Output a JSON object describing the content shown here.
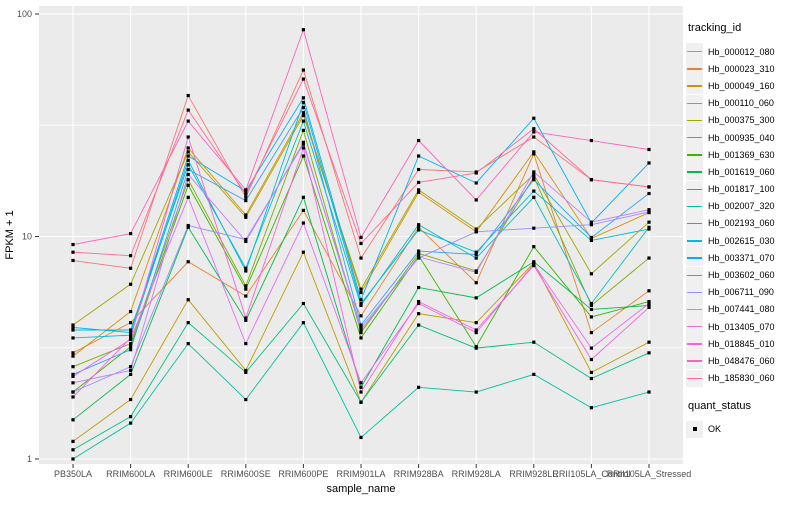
{
  "chart_data": {
    "type": "line",
    "title": "",
    "xlabel": "sample_name",
    "ylabel": "FPKM + 1",
    "y_scale": "log10",
    "ylim": [
      1,
      100
    ],
    "y_major_ticks": [
      1,
      10,
      100
    ],
    "y_minor_gridlines": [
      3.162,
      31.62
    ],
    "legend_position": "right",
    "grid": true,
    "point_shape": "black-square",
    "categories": [
      "PB350LA",
      "RRIM600LA",
      "RRIM600LE",
      "RRIM600SE",
      "RRIM600PE",
      "RRIM901LA",
      "RRIM928BA",
      "RRIM928LA",
      "RRIM928LE",
      "RRII105LA_Control",
      "RRII105LA_Stressed"
    ],
    "series": [
      {
        "name": "Hb_000012_080",
        "color": "#F8766D",
        "values": [
          7.8,
          7.2,
          43,
          15.0,
          56,
          8.0,
          20,
          19.5,
          28,
          18.0,
          16.7
        ]
      },
      {
        "name": "Hb_000023_310",
        "color": "#EA8331",
        "values": [
          3.0,
          4.1,
          7.7,
          5.4,
          13.1,
          4.4,
          11.0,
          6.2,
          23.5,
          3.7,
          5.7
        ]
      },
      {
        "name": "Hb_000049_160",
        "color": "#D89000",
        "values": [
          2.9,
          4.6,
          25,
          12.5,
          36,
          5.6,
          15.8,
          10.5,
          24,
          9.8,
          12.8
        ]
      },
      {
        "name": "Hb_000110_060",
        "color": "#C09B00",
        "values": [
          1.2,
          1.85,
          5.2,
          2.5,
          8.5,
          1.8,
          4.5,
          4.1,
          7.6,
          2.45,
          3.35
        ]
      },
      {
        "name": "Hb_000375_300",
        "color": "#A3A500",
        "values": [
          4.0,
          6.1,
          24,
          12.2,
          35,
          5.8,
          16.2,
          10.8,
          19,
          6.8,
          11.6
        ]
      },
      {
        "name": "Hb_000935_040",
        "color": "#7CAE00",
        "values": [
          2.6,
          3.3,
          18,
          6.0,
          30,
          3.7,
          8.4,
          7.0,
          18.5,
          4.9,
          8.0
        ]
      },
      {
        "name": "Hb_001369_630",
        "color": "#39B600",
        "values": [
          2.0,
          3.2,
          17,
          5.8,
          23,
          3.5,
          8.2,
          3.2,
          9.0,
          4.35,
          5.1
        ]
      },
      {
        "name": "Hb_001619_060",
        "color": "#00BB4E",
        "values": [
          1.5,
          2.4,
          11,
          4.2,
          15,
          2.1,
          5.9,
          5.3,
          7.7,
          4.7,
          4.9
        ]
      },
      {
        "name": "Hb_001817_100",
        "color": "#00BF7D",
        "values": [
          1.1,
          1.55,
          4.1,
          2.45,
          5.0,
          1.8,
          4.0,
          3.15,
          3.35,
          2.3,
          3.0
        ]
      },
      {
        "name": "Hb_002007_320",
        "color": "#00C1A3",
        "values": [
          1.0,
          1.45,
          3.3,
          1.85,
          4.1,
          1.25,
          2.1,
          2.0,
          2.4,
          1.7,
          2.0
        ]
      },
      {
        "name": "Hb_002193_060",
        "color": "#00BFC4",
        "values": [
          3.8,
          3.8,
          21,
          7.2,
          33,
          4.9,
          11.3,
          8.0,
          15.0,
          5.0,
          11.0
        ]
      },
      {
        "name": "Hb_002615_030",
        "color": "#00BAE0",
        "values": [
          3.5,
          3.6,
          22,
          7.0,
          40,
          5.0,
          10.7,
          8.5,
          16.0,
          9.6,
          10.8
        ]
      },
      {
        "name": "Hb_003371_070",
        "color": "#00B0F6",
        "values": [
          3.9,
          3.7,
          23,
          16.0,
          42,
          5.2,
          23,
          17.4,
          34,
          11.5,
          21.4
        ]
      },
      {
        "name": "Hb_003602_060",
        "color": "#35A2FF",
        "values": [
          2.4,
          3.1,
          20,
          14.5,
          38,
          4.0,
          8.6,
          8.3,
          18,
          9.9,
          15.6
        ]
      },
      {
        "name": "Hb_006711_090",
        "color": "#9590FF",
        "values": [
          2.0,
          2.6,
          11.2,
          9.7,
          26,
          3.9,
          8.0,
          10.5,
          10.9,
          11.3,
          12.9
        ]
      },
      {
        "name": "Hb_007441_080",
        "color": "#C77CFF",
        "values": [
          2.2,
          2.5,
          19,
          9.5,
          26.5,
          3.8,
          8.1,
          6.9,
          19.5,
          11.6,
          13.2
        ]
      },
      {
        "name": "Hb_013405_070",
        "color": "#E76BF3",
        "values": [
          2.35,
          3.45,
          15,
          3.3,
          11.5,
          2.2,
          5.0,
          3.7,
          7.5,
          3.15,
          5.0
        ]
      },
      {
        "name": "Hb_018845_010",
        "color": "#FA62DB",
        "values": [
          1.9,
          3.5,
          28,
          4.3,
          25,
          2.0,
          5.1,
          3.8,
          7.4,
          2.8,
          4.8
        ]
      },
      {
        "name": "Hb_048476_060",
        "color": "#FF62BC",
        "values": [
          9.2,
          10.3,
          33,
          16.2,
          85,
          9.9,
          27,
          14.6,
          29.5,
          27,
          24.6
        ]
      },
      {
        "name": "Hb_185830_060",
        "color": "#FF6A98",
        "values": [
          8.5,
          8.2,
          37,
          15.5,
          51,
          9.3,
          17.5,
          19.3,
          30.5,
          18.0,
          16.7
        ]
      }
    ],
    "legend": {
      "tracking_id_title": "tracking_id",
      "quant_status_title": "quant_status",
      "quant_status_items": [
        {
          "label": "OK",
          "shape": "black-square"
        }
      ]
    },
    "colors": {
      "panel_bg": "#ebebeb",
      "grid": "#ffffff",
      "tick_label": "#4d4d4d",
      "axis_title": "#000000",
      "point": "#000000",
      "legend_key_bg": "#f0f0f0",
      "outer_bg": "#ffffff"
    }
  }
}
